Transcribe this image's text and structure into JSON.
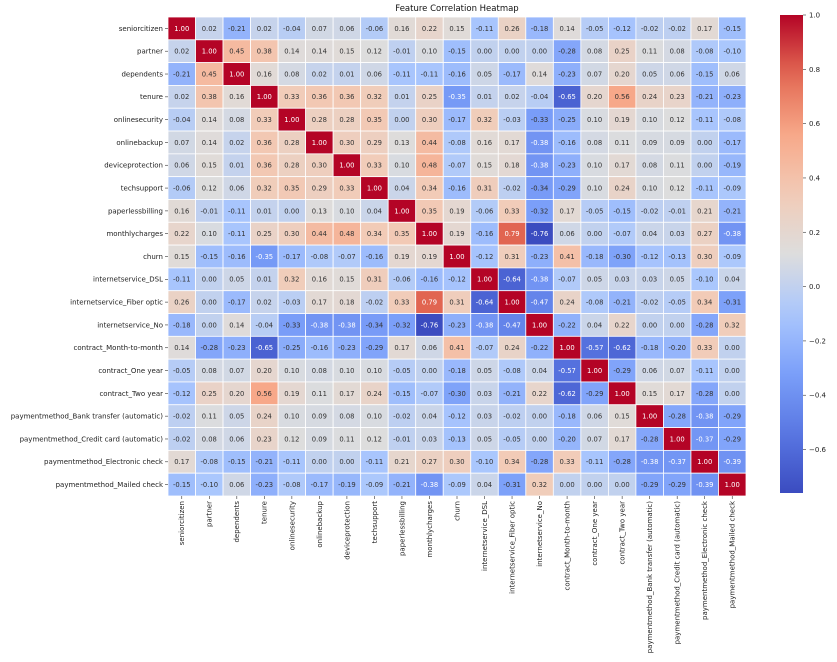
{
  "chart_data": {
    "type": "heatmap",
    "title": "Feature Correlation Heatmap",
    "xlabel": "",
    "ylabel": "",
    "labels": [
      "seniorcitizen",
      "partner",
      "dependents",
      "tenure",
      "onlinesecurity",
      "onlinebackup",
      "deviceprotection",
      "techsupport",
      "paperlessbilling",
      "monthlycharges",
      "churn",
      "internetservice_DSL",
      "internetservice_Fiber optic",
      "internetservice_No",
      "contract_Month-to-month",
      "contract_One year",
      "contract_Two year",
      "paymentmethod_Bank transfer (automatic)",
      "paymentmethod_Credit card (automatic)",
      "paymentmethod_Electronic check",
      "paymentmethod_Mailed check"
    ],
    "values": [
      [
        1.0,
        0.02,
        -0.21,
        0.02,
        -0.04,
        0.07,
        0.06,
        -0.06,
        0.16,
        0.22,
        0.15,
        -0.11,
        0.26,
        -0.18,
        0.14,
        -0.05,
        -0.12,
        -0.02,
        -0.02,
        0.17,
        -0.15
      ],
      [
        0.02,
        1.0,
        0.45,
        0.38,
        0.14,
        0.14,
        0.15,
        0.12,
        -0.01,
        0.1,
        -0.15,
        -0.0,
        0.0,
        0.0,
        -0.28,
        0.08,
        0.25,
        0.11,
        0.08,
        -0.08,
        -0.1
      ],
      [
        -0.21,
        0.45,
        1.0,
        0.16,
        0.08,
        0.02,
        0.01,
        0.06,
        -0.11,
        -0.11,
        -0.16,
        0.05,
        -0.17,
        0.14,
        -0.23,
        0.07,
        0.2,
        0.05,
        0.06,
        -0.15,
        0.06
      ],
      [
        0.02,
        0.38,
        0.16,
        1.0,
        0.33,
        0.36,
        0.36,
        0.32,
        0.01,
        0.25,
        -0.35,
        0.01,
        0.02,
        -0.04,
        -0.65,
        0.2,
        0.56,
        0.24,
        0.23,
        -0.21,
        -0.23
      ],
      [
        -0.04,
        0.14,
        0.08,
        0.33,
        1.0,
        0.28,
        0.28,
        0.35,
        -0.0,
        0.3,
        -0.17,
        0.32,
        -0.03,
        -0.33,
        -0.25,
        0.1,
        0.19,
        0.1,
        0.12,
        -0.11,
        -0.08
      ],
      [
        0.07,
        0.14,
        0.02,
        0.36,
        0.28,
        1.0,
        0.3,
        0.29,
        0.13,
        0.44,
        -0.08,
        0.16,
        0.17,
        -0.38,
        -0.16,
        0.08,
        0.11,
        0.09,
        0.09,
        -0.0,
        -0.17
      ],
      [
        0.06,
        0.15,
        0.01,
        0.36,
        0.28,
        0.3,
        1.0,
        0.33,
        0.1,
        0.48,
        -0.07,
        0.15,
        0.18,
        -0.38,
        -0.23,
        0.1,
        0.17,
        0.08,
        0.11,
        -0.0,
        -0.19
      ],
      [
        -0.06,
        0.12,
        0.06,
        0.32,
        0.35,
        0.29,
        0.33,
        1.0,
        0.04,
        0.34,
        -0.16,
        0.31,
        -0.02,
        -0.34,
        -0.29,
        0.1,
        0.24,
        0.1,
        0.12,
        -0.11,
        -0.09
      ],
      [
        0.16,
        -0.01,
        -0.11,
        0.01,
        -0.0,
        0.13,
        0.1,
        0.04,
        1.0,
        0.35,
        0.19,
        -0.06,
        0.33,
        -0.32,
        0.17,
        -0.05,
        -0.15,
        -0.02,
        -0.01,
        0.21,
        -0.21
      ],
      [
        0.22,
        0.1,
        -0.11,
        0.25,
        0.3,
        0.44,
        0.48,
        0.34,
        0.35,
        1.0,
        0.19,
        -0.16,
        0.79,
        -0.76,
        0.06,
        0.0,
        -0.07,
        0.04,
        0.03,
        0.27,
        -0.38
      ],
      [
        0.15,
        -0.15,
        -0.16,
        -0.35,
        -0.17,
        -0.08,
        -0.07,
        -0.16,
        0.19,
        0.19,
        1.0,
        -0.12,
        0.31,
        -0.23,
        0.41,
        -0.18,
        -0.3,
        -0.12,
        -0.13,
        0.3,
        -0.09
      ],
      [
        -0.11,
        -0.0,
        0.05,
        0.01,
        0.32,
        0.16,
        0.15,
        0.31,
        -0.06,
        -0.16,
        -0.12,
        1.0,
        -0.64,
        -0.38,
        -0.07,
        0.05,
        0.03,
        0.03,
        0.05,
        -0.1,
        0.04
      ],
      [
        0.26,
        0.0,
        -0.17,
        0.02,
        -0.03,
        0.17,
        0.18,
        -0.02,
        0.33,
        0.79,
        0.31,
        -0.64,
        1.0,
        -0.47,
        0.24,
        -0.08,
        -0.21,
        -0.02,
        -0.05,
        0.34,
        -0.31
      ],
      [
        -0.18,
        0.0,
        0.14,
        -0.04,
        -0.33,
        -0.38,
        -0.38,
        -0.34,
        -0.32,
        -0.76,
        -0.23,
        -0.38,
        -0.47,
        1.0,
        -0.22,
        0.04,
        0.22,
        -0.0,
        0.0,
        -0.28,
        0.32
      ],
      [
        0.14,
        -0.28,
        -0.23,
        -0.65,
        -0.25,
        -0.16,
        -0.23,
        -0.29,
        0.17,
        0.06,
        0.41,
        -0.07,
        0.24,
        -0.22,
        1.0,
        -0.57,
        -0.62,
        -0.18,
        -0.2,
        0.33,
        0.0
      ],
      [
        -0.05,
        0.08,
        0.07,
        0.2,
        0.1,
        0.08,
        0.1,
        0.1,
        -0.05,
        0.0,
        -0.18,
        0.05,
        -0.08,
        0.04,
        -0.57,
        1.0,
        -0.29,
        0.06,
        0.07,
        -0.11,
        -0.0
      ],
      [
        -0.12,
        0.25,
        0.2,
        0.56,
        0.19,
        0.11,
        0.17,
        0.24,
        -0.15,
        -0.07,
        -0.3,
        0.03,
        -0.21,
        0.22,
        -0.62,
        -0.29,
        1.0,
        0.15,
        0.17,
        -0.28,
        -0.0
      ],
      [
        -0.02,
        0.11,
        0.05,
        0.24,
        0.1,
        0.09,
        0.08,
        0.1,
        -0.02,
        0.04,
        -0.12,
        0.03,
        -0.02,
        -0.0,
        -0.18,
        0.06,
        0.15,
        1.0,
        -0.28,
        -0.38,
        -0.29
      ],
      [
        -0.02,
        0.08,
        0.06,
        0.23,
        0.12,
        0.09,
        0.11,
        0.12,
        -0.01,
        0.03,
        -0.13,
        0.05,
        -0.05,
        0.0,
        -0.2,
        0.07,
        0.17,
        -0.28,
        1.0,
        -0.37,
        -0.29
      ],
      [
        0.17,
        -0.08,
        -0.15,
        -0.21,
        -0.11,
        -0.0,
        -0.0,
        -0.11,
        0.21,
        0.27,
        0.3,
        -0.1,
        0.34,
        -0.28,
        0.33,
        -0.11,
        -0.28,
        -0.38,
        -0.37,
        1.0,
        -0.39
      ],
      [
        -0.15,
        -0.1,
        0.06,
        -0.23,
        -0.08,
        -0.17,
        -0.19,
        -0.09,
        -0.21,
        -0.38,
        -0.09,
        0.04,
        -0.31,
        0.32,
        0.0,
        -0.0,
        -0.0,
        -0.29,
        -0.29,
        -0.39,
        1.0
      ]
    ],
    "colormap": "coolwarm",
    "vmin": -0.76,
    "vmax": 1.0,
    "colorbar_ticks": [
      "1.0",
      "0.8",
      "0.6",
      "0.4",
      "0.2",
      "0.0",
      "−0.2",
      "−0.4",
      "−0.6"
    ],
    "colorbar_tick_values": [
      1.0,
      0.8,
      0.6,
      0.4,
      0.2,
      0.0,
      -0.2,
      -0.4,
      -0.6
    ],
    "annotations_format": "0.00",
    "colors": {
      "low": "#3b4cc0",
      "mid": "#dddddd",
      "high": "#b40426"
    }
  }
}
